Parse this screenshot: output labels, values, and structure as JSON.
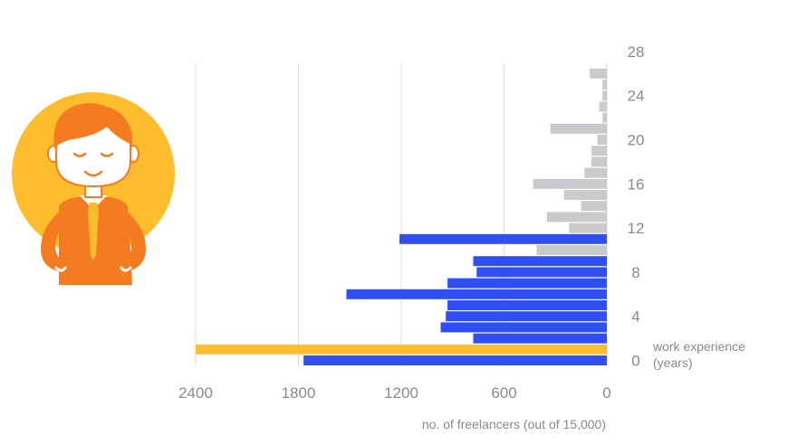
{
  "chart_data": {
    "type": "bar",
    "orientation": "horizontal",
    "xlabel": "no. of freelancers (out of 15,000)",
    "ylabel_line1": "work experience",
    "ylabel_line2": "(years)",
    "x_ticks": [
      "2400",
      "1800",
      "1200",
      "600",
      "0"
    ],
    "x_tick_values": [
      2400,
      1800,
      1200,
      600,
      0
    ],
    "y_ticks": [
      "0",
      "4",
      "8",
      "12",
      "16",
      "20",
      "24",
      "28"
    ],
    "y_tick_values": [
      0,
      4,
      8,
      12,
      16,
      20,
      24,
      28
    ],
    "xlim": [
      0,
      2400
    ],
    "x_reversed": true,
    "ylim": [
      0,
      28
    ],
    "y_axis_position": "right",
    "grid": "vertical",
    "colors": {
      "highlight": "#fdbd2c",
      "primary": "#2f4ff2",
      "secondary": "#c9cacc",
      "grid": "#dddddd",
      "text": "#8a8a8a"
    },
    "bars": [
      {
        "years": 0,
        "value": 1770,
        "color": "primary"
      },
      {
        "years": 1,
        "value": 2400,
        "color": "highlight"
      },
      {
        "years": 2,
        "value": 780,
        "color": "primary"
      },
      {
        "years": 3,
        "value": 970,
        "color": "primary"
      },
      {
        "years": 4,
        "value": 940,
        "color": "primary"
      },
      {
        "years": 5,
        "value": 930,
        "color": "primary"
      },
      {
        "years": 6,
        "value": 1520,
        "color": "primary"
      },
      {
        "years": 7,
        "value": 930,
        "color": "primary"
      },
      {
        "years": 8,
        "value": 760,
        "color": "primary"
      },
      {
        "years": 9,
        "value": 780,
        "color": "primary"
      },
      {
        "years": 10,
        "value": 410,
        "color": "secondary"
      },
      {
        "years": 11,
        "value": 1210,
        "color": "primary"
      },
      {
        "years": 12,
        "value": 220,
        "color": "secondary"
      },
      {
        "years": 13,
        "value": 350,
        "color": "secondary"
      },
      {
        "years": 14,
        "value": 150,
        "color": "secondary"
      },
      {
        "years": 15,
        "value": 250,
        "color": "secondary"
      },
      {
        "years": 16,
        "value": 430,
        "color": "secondary"
      },
      {
        "years": 17,
        "value": 130,
        "color": "secondary"
      },
      {
        "years": 18,
        "value": 90,
        "color": "secondary"
      },
      {
        "years": 19,
        "value": 90,
        "color": "secondary"
      },
      {
        "years": 20,
        "value": 55,
        "color": "secondary"
      },
      {
        "years": 21,
        "value": 330,
        "color": "secondary"
      },
      {
        "years": 22,
        "value": 25,
        "color": "secondary"
      },
      {
        "years": 23,
        "value": 45,
        "color": "secondary"
      },
      {
        "years": 24,
        "value": 25,
        "color": "secondary"
      },
      {
        "years": 25,
        "value": 25,
        "color": "secondary"
      },
      {
        "years": 26,
        "value": 100,
        "color": "secondary"
      }
    ]
  },
  "illustration": {
    "name": "freelancer-character",
    "colors": {
      "circle": "#fdbd2c",
      "hair": "#f47b20",
      "shirt": "#f47b20",
      "tie": "#fdbd2c",
      "skin": "#ffffff",
      "outline": "#f47b20"
    }
  }
}
